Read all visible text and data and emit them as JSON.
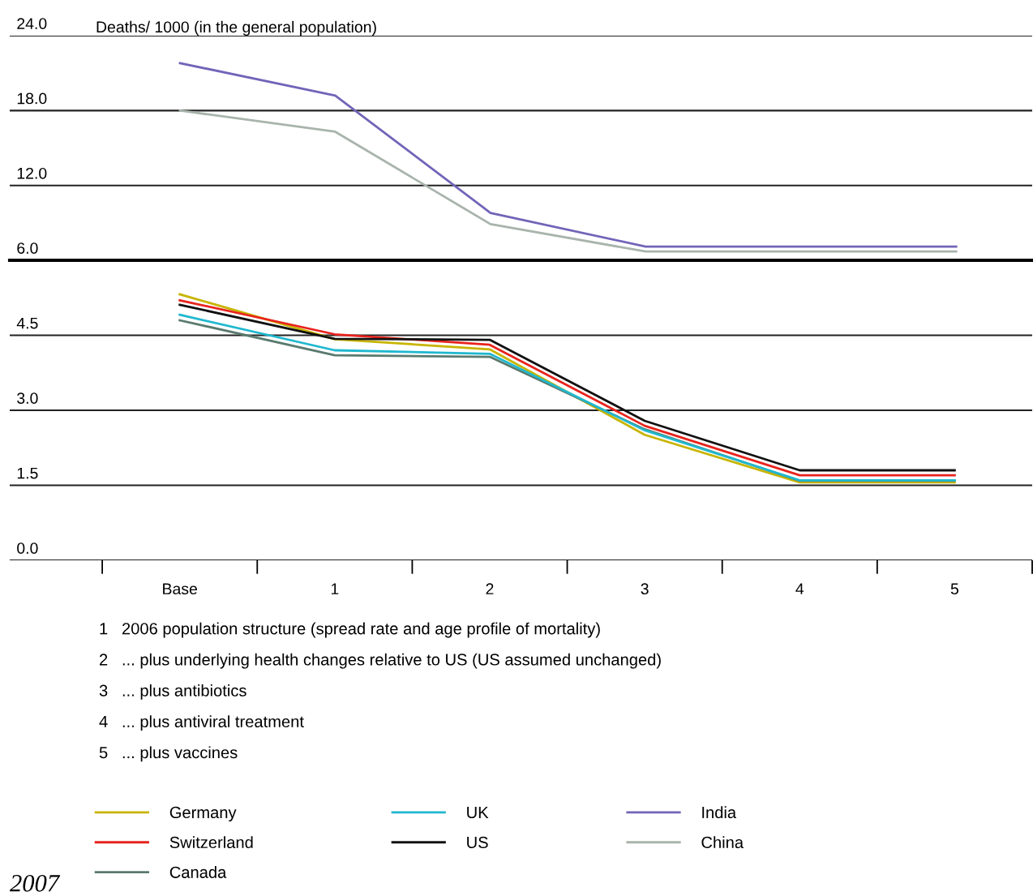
{
  "chart_data": [
    {
      "type": "line",
      "ylabel": "Deaths/ 1000 (in the general population)",
      "ylim": [
        6,
        24
      ],
      "yticks": [
        {
          "value": 6,
          "label": "6.0"
        },
        {
          "value": 12,
          "label": "12.0"
        },
        {
          "value": 18,
          "label": "18.0"
        },
        {
          "value": 24,
          "label": "24.0"
        }
      ],
      "grid": "y",
      "tick_labels": "y",
      "legend": "bottom",
      "series": [
        {
          "name": "India",
          "color": "#7264b8",
          "values": [
            21.8,
            19.2,
            9.8,
            7.1,
            7.1,
            7.1
          ]
        },
        {
          "name": "China",
          "color": "#a8b4ac",
          "values": [
            18.0,
            16.3,
            8.9,
            6.7,
            6.7,
            6.7
          ]
        }
      ]
    },
    {
      "type": "line",
      "categories": [
        "Base",
        "1",
        "2",
        "3",
        "4",
        "5"
      ],
      "ylim": [
        0,
        6
      ],
      "yticks": [
        {
          "value": 0,
          "label": "0.0"
        },
        {
          "value": 1.5,
          "label": "1.5"
        },
        {
          "value": 3,
          "label": "3.0"
        },
        {
          "value": 4.5,
          "label": "4.5"
        }
      ],
      "grid": "y",
      "legend": "bottom",
      "series": [
        {
          "name": "Germany",
          "color": "#c8b400",
          "values": [
            5.32,
            4.42,
            4.22,
            2.51,
            1.56,
            1.56
          ]
        },
        {
          "name": "Switzerland",
          "color": "#e8231d",
          "values": [
            5.2,
            4.52,
            4.31,
            2.69,
            1.7,
            1.7
          ]
        },
        {
          "name": "Canada",
          "color": "#5a7a6e",
          "values": [
            4.8,
            4.1,
            4.07,
            2.62,
            1.59,
            1.59
          ]
        },
        {
          "name": "UK",
          "color": "#1fb8cf",
          "values": [
            4.91,
            4.2,
            4.13,
            2.6,
            1.6,
            1.6
          ]
        },
        {
          "name": "US",
          "color": "#111111",
          "values": [
            5.11,
            4.43,
            4.41,
            2.79,
            1.8,
            1.8
          ]
        }
      ],
      "annotations": [
        "1   2006 population structure (spread rate and age profile of mortality)",
        "2   ... plus underlying health changes relative to US (US assumed unchanged)",
        "3   ... plus antibiotics",
        "4   ... plus antiviral treatment",
        "5   ... plus vaccines",
        "2007"
      ]
    }
  ]
}
